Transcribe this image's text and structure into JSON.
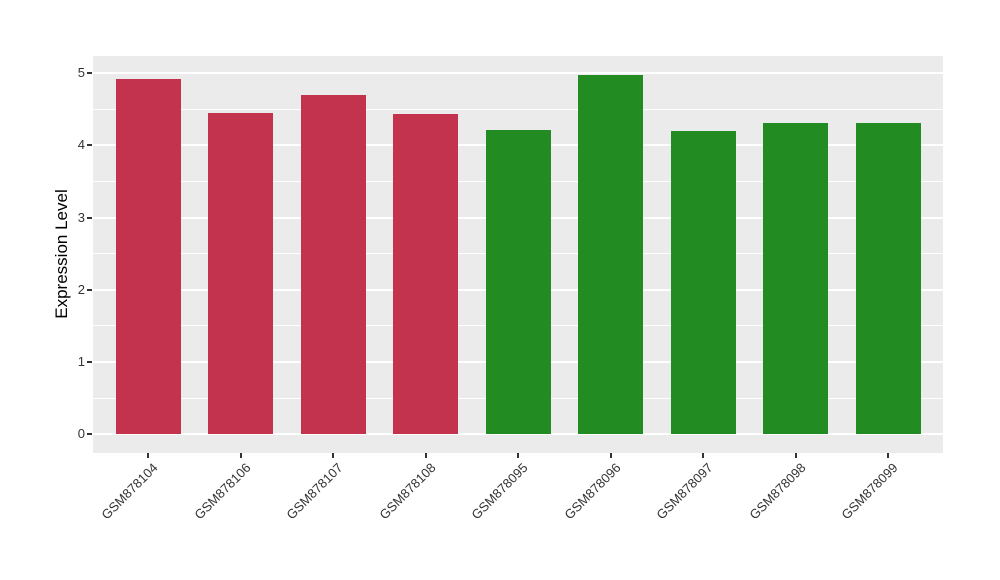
{
  "figure": {
    "background": "#FFFFFF"
  },
  "chart_data": {
    "type": "bar",
    "title": "",
    "xlabel": "",
    "ylabel": "Expression Level",
    "categories": [
      "GSM878104",
      "GSM878106",
      "GSM878107",
      "GSM878108",
      "GSM878095",
      "GSM878096",
      "GSM878097",
      "GSM878098",
      "GSM878099"
    ],
    "values": [
      4.92,
      4.44,
      4.7,
      4.43,
      4.21,
      4.97,
      4.2,
      4.31,
      4.31
    ],
    "bar_colors": [
      "#C3334D",
      "#C3334D",
      "#C3334D",
      "#C3334D",
      "#228B22",
      "#228B22",
      "#228B22",
      "#228B22",
      "#228B22"
    ],
    "ylim": [
      0,
      5.23
    ],
    "yticks": [
      0,
      1,
      2,
      3,
      4,
      5
    ],
    "yticks_minor": [
      0.5,
      1.5,
      2.5,
      3.5,
      4.5
    ],
    "x_label_angle_deg": 45,
    "grid": "major+minor",
    "legend": "none",
    "panel_background": "#EBEBEB",
    "grid_color": "#FFFFFF",
    "tick_color": "#333333"
  }
}
